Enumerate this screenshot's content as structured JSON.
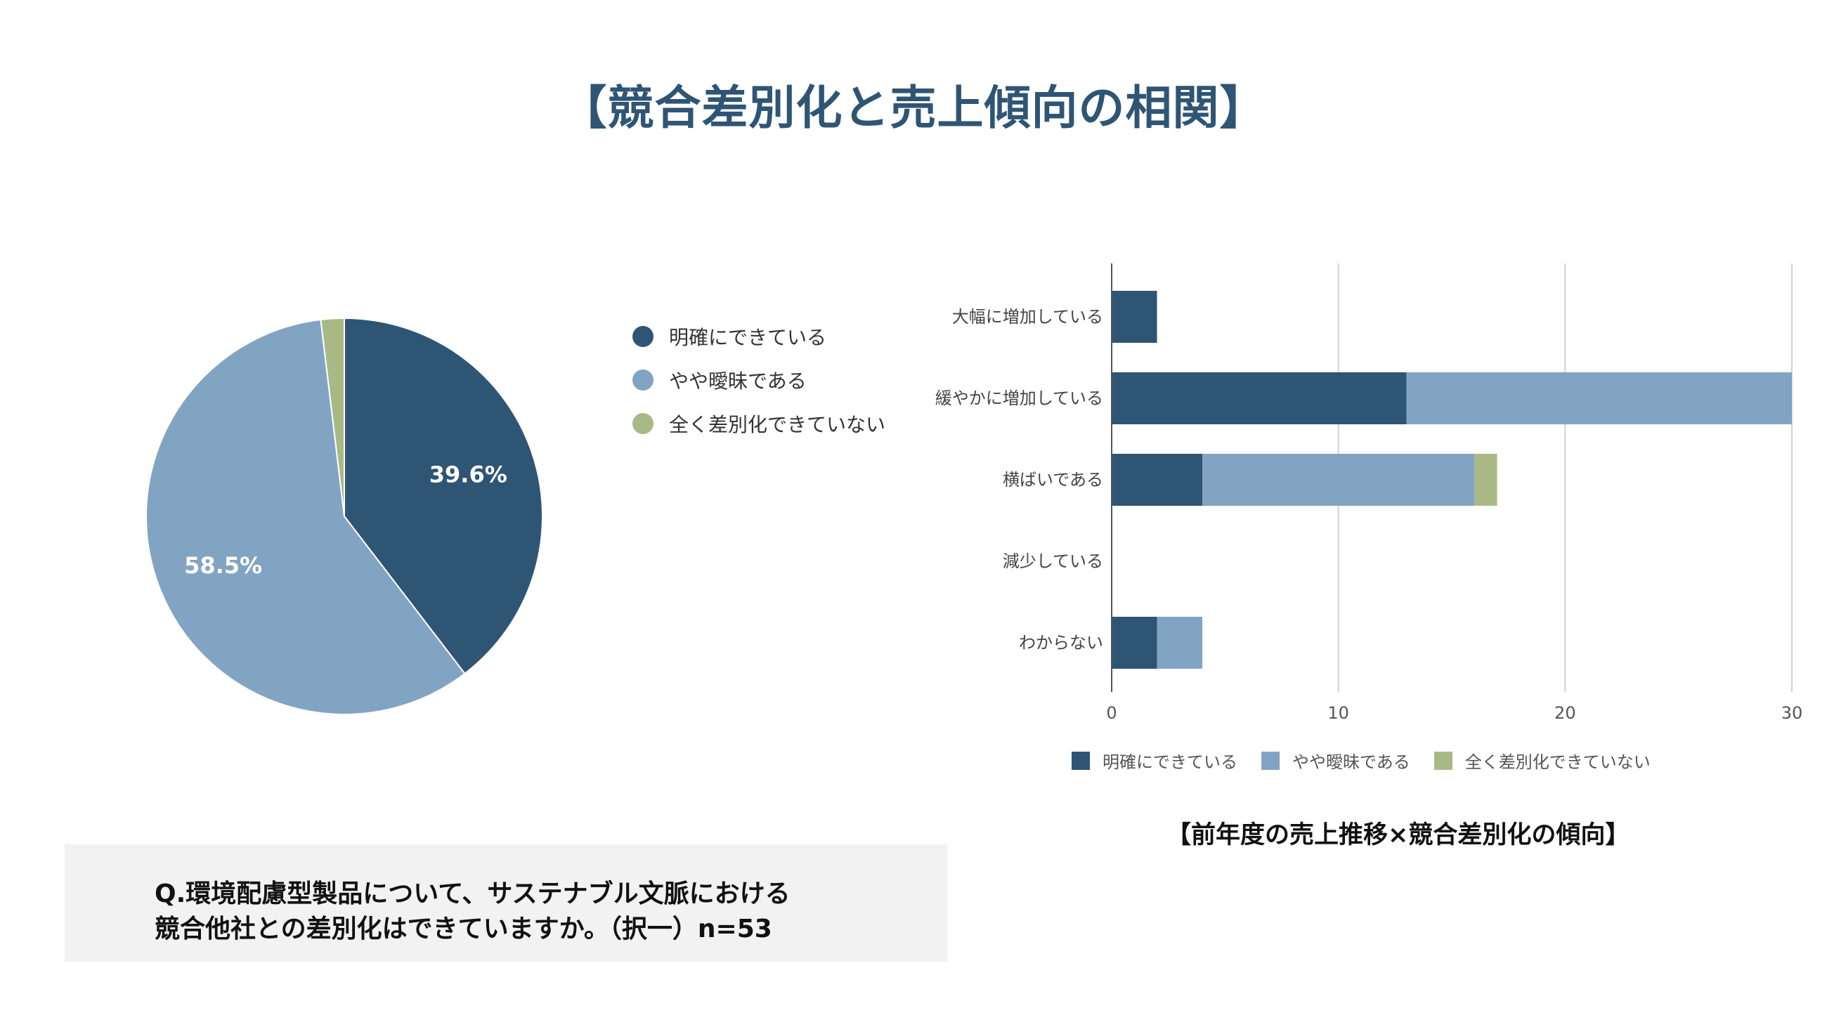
{
  "main_title": "【競合差別化と売上傾向の相関】",
  "colors": {
    "series_1": "#2f5575",
    "series_2": "#82a4c3",
    "series_3": "#a9b986",
    "gridline": "#d0d0d0",
    "axis": "#555555"
  },
  "pie_legend": [
    "明確にできている",
    "やや曖昧である",
    "全く差別化できていない"
  ],
  "bar_title": "【前年度の売上推移×競合差別化の傾向】",
  "question": {
    "line1": "Q.環境配慮型製品について、サステナブル文脈における",
    "line2": "競合他社との差別化はできていますか。（択一）n=53"
  },
  "chart_data": [
    {
      "type": "pie",
      "title": "",
      "labels": [
        "明確にできている",
        "やや曖昧である",
        "全く差別化できていない"
      ],
      "values": [
        39.6,
        58.5,
        1.9
      ],
      "data_labels": [
        "39.6%",
        "58.5%",
        ""
      ],
      "legend_position": "right"
    },
    {
      "type": "bar",
      "orientation": "horizontal",
      "stacked": true,
      "title": "【前年度の売上推移×競合差別化の傾向】",
      "categories": [
        "大幅に増加している",
        "緩やかに増加している",
        "横ばいである",
        "減少している",
        "わからない"
      ],
      "series": [
        {
          "name": "明確にできている",
          "values": [
            2,
            13,
            4,
            0,
            2
          ]
        },
        {
          "name": "やや曖昧である",
          "values": [
            0,
            17,
            12,
            0,
            2
          ]
        },
        {
          "name": "全く差別化できていない",
          "values": [
            0,
            0,
            1,
            0,
            0
          ]
        }
      ],
      "xlim": [
        0,
        30
      ],
      "xticks": [
        "0",
        "10",
        "20",
        "30"
      ],
      "grid": true,
      "legend_position": "bottom"
    }
  ]
}
